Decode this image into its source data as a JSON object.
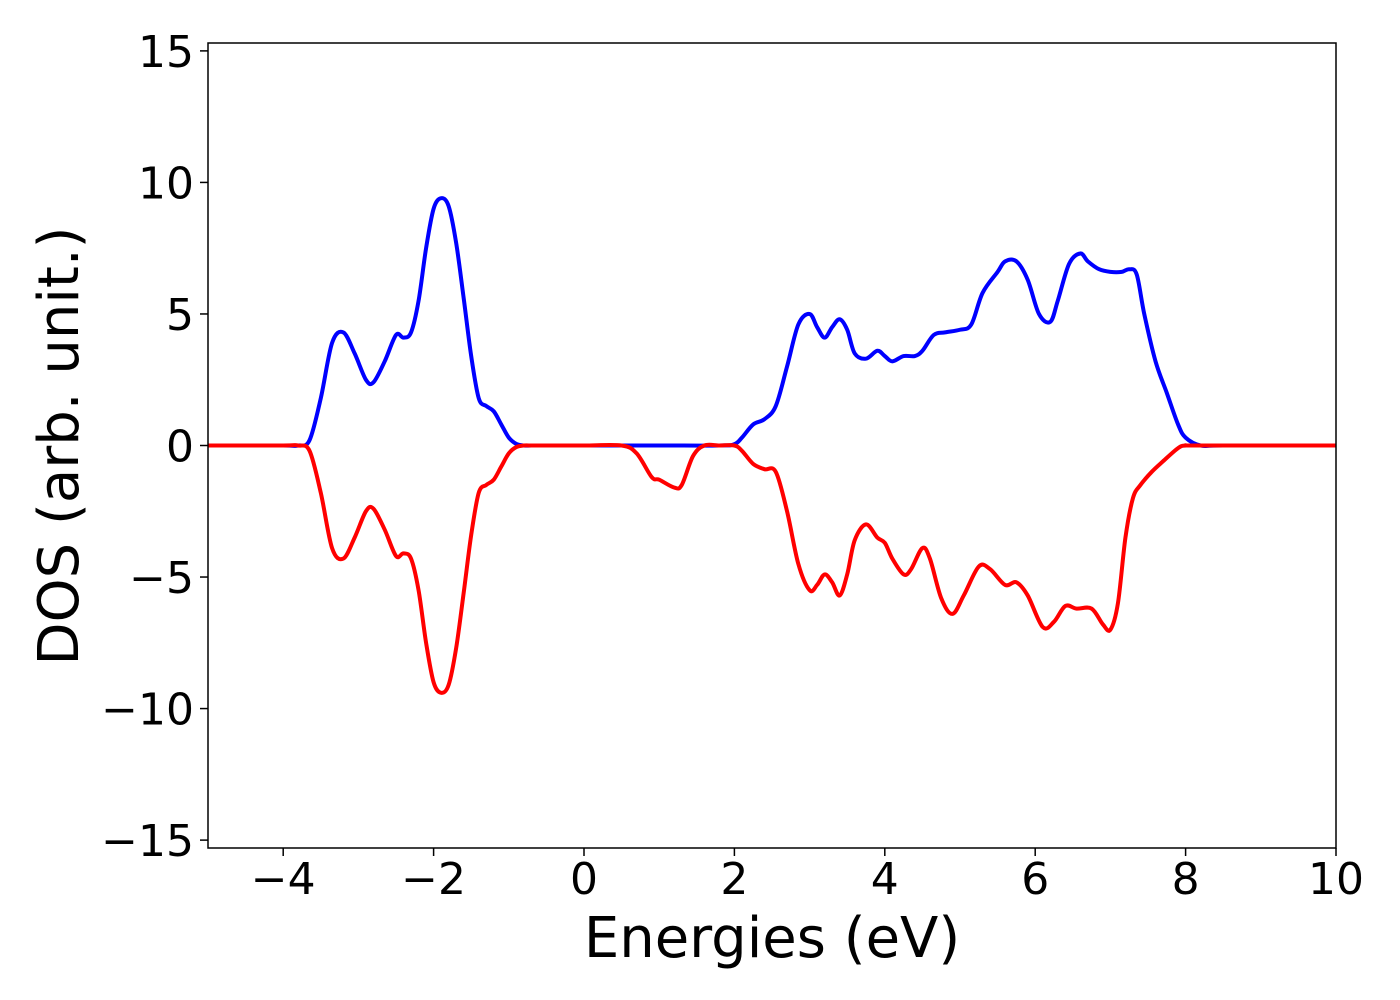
{
  "chart_data": {
    "type": "line",
    "title": "",
    "xlabel": "Energies (eV)",
    "ylabel": "DOS (arb. unit.)",
    "xlim": [
      -5,
      10
    ],
    "ylim": [
      -15.3,
      15.3
    ],
    "xticks": [
      -4,
      -2,
      0,
      2,
      4,
      6,
      8,
      10
    ],
    "xtick_labels": [
      "−4",
      "−2",
      "0",
      "2",
      "4",
      "6",
      "8",
      "10"
    ],
    "yticks": [
      -15,
      -10,
      -5,
      0,
      5,
      10,
      15
    ],
    "ytick_labels": [
      "−15",
      "−10",
      "−5",
      "0",
      "5",
      "10",
      "15"
    ],
    "grid": false,
    "legend": "none",
    "series": [
      {
        "color": "#0000ff",
        "x": [
          -5,
          -4.0,
          -3.8,
          -3.65,
          -3.5,
          -3.35,
          -3.2,
          -3.05,
          -2.9,
          -2.8,
          -2.65,
          -2.5,
          -2.4,
          -2.3,
          -2.2,
          -2.1,
          -2.0,
          -1.9,
          -1.8,
          -1.7,
          -1.6,
          -1.5,
          -1.4,
          -1.3,
          -1.2,
          -1.1,
          -1.0,
          -0.9,
          -0.8,
          -0.7,
          -0.55,
          -0.4,
          0,
          1.0,
          1.8,
          2.0,
          2.1,
          2.25,
          2.4,
          2.55,
          2.7,
          2.85,
          3.0,
          3.1,
          3.2,
          3.3,
          3.4,
          3.5,
          3.6,
          3.75,
          3.9,
          4.0,
          4.1,
          4.25,
          4.4,
          4.5,
          4.65,
          4.8,
          5.0,
          5.15,
          5.3,
          5.5,
          5.6,
          5.75,
          5.9,
          6.05,
          6.2,
          6.3,
          6.45,
          6.6,
          6.7,
          6.85,
          7.0,
          7.15,
          7.25,
          7.35,
          7.45,
          7.6,
          7.75,
          7.9,
          8.0,
          8.2,
          8.5,
          10
        ],
        "y": [
          0,
          0,
          0,
          0.2,
          1.8,
          3.9,
          4.3,
          3.5,
          2.5,
          2.4,
          3.2,
          4.2,
          4.1,
          4.3,
          5.5,
          7.5,
          9.0,
          9.4,
          9.1,
          7.7,
          5.6,
          3.4,
          1.8,
          1.5,
          1.3,
          0.8,
          0.3,
          0.06,
          0,
          0,
          0,
          0,
          0,
          0,
          0,
          0.05,
          0.3,
          0.8,
          1.0,
          1.5,
          3.0,
          4.6,
          5.0,
          4.5,
          4.1,
          4.5,
          4.8,
          4.4,
          3.5,
          3.3,
          3.6,
          3.4,
          3.2,
          3.4,
          3.4,
          3.6,
          4.2,
          4.3,
          4.4,
          4.6,
          5.8,
          6.6,
          7.0,
          7.0,
          6.3,
          5.0,
          4.7,
          5.5,
          6.9,
          7.3,
          7.0,
          6.7,
          6.6,
          6.6,
          6.7,
          6.5,
          5.0,
          3.2,
          2.0,
          0.8,
          0.3,
          0,
          0,
          0
        ]
      },
      {
        "color": "#ff0000",
        "x": [
          -5,
          -4.0,
          -3.8,
          -3.65,
          -3.5,
          -3.35,
          -3.2,
          -3.05,
          -2.9,
          -2.8,
          -2.65,
          -2.5,
          -2.4,
          -2.3,
          -2.2,
          -2.1,
          -2.0,
          -1.9,
          -1.8,
          -1.7,
          -1.6,
          -1.5,
          -1.4,
          -1.3,
          -1.2,
          -1.1,
          -1.0,
          -0.9,
          -0.8,
          -0.7,
          -0.6,
          -0.5,
          0,
          0.5,
          0.7,
          0.9,
          1.0,
          1.2,
          1.3,
          1.45,
          1.6,
          1.8,
          2.0,
          2.1,
          2.25,
          2.4,
          2.55,
          2.7,
          2.85,
          3.0,
          3.1,
          3.2,
          3.3,
          3.4,
          3.5,
          3.6,
          3.75,
          3.9,
          4.0,
          4.1,
          4.25,
          4.35,
          4.5,
          4.6,
          4.75,
          4.9,
          5.05,
          5.25,
          5.4,
          5.6,
          5.75,
          5.9,
          6.1,
          6.25,
          6.4,
          6.55,
          6.75,
          6.9,
          7.0,
          7.1,
          7.2,
          7.3,
          7.4,
          7.55,
          7.7,
          7.9,
          8.0,
          8.2,
          10
        ],
        "y": [
          0,
          0,
          0,
          -0.2,
          -1.8,
          -3.9,
          -4.3,
          -3.5,
          -2.5,
          -2.4,
          -3.2,
          -4.2,
          -4.1,
          -4.3,
          -5.5,
          -7.5,
          -9.0,
          -9.4,
          -9.1,
          -7.7,
          -5.6,
          -3.4,
          -1.8,
          -1.5,
          -1.3,
          -0.8,
          -0.3,
          -0.06,
          0,
          0,
          0,
          0,
          0,
          0,
          -0.3,
          -1.2,
          -1.3,
          -1.6,
          -1.5,
          -0.4,
          0,
          0,
          0,
          -0.2,
          -0.7,
          -0.9,
          -1.0,
          -2.5,
          -4.5,
          -5.5,
          -5.3,
          -4.9,
          -5.2,
          -5.7,
          -4.9,
          -3.6,
          -3.0,
          -3.5,
          -3.7,
          -4.3,
          -4.9,
          -4.7,
          -3.9,
          -4.3,
          -5.8,
          -6.4,
          -5.7,
          -4.6,
          -4.7,
          -5.3,
          -5.2,
          -5.7,
          -6.9,
          -6.7,
          -6.1,
          -6.2,
          -6.2,
          -6.8,
          -7.0,
          -6.0,
          -3.5,
          -2.0,
          -1.5,
          -1.0,
          -0.6,
          -0.1,
          0,
          0,
          0
        ]
      }
    ]
  }
}
